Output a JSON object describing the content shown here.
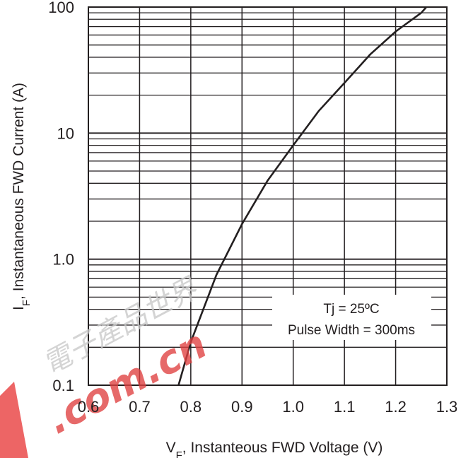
{
  "chart_data": {
    "type": "line",
    "x_scale": "linear",
    "y_scale": "log",
    "xlim": [
      0.6,
      1.3
    ],
    "ylim": [
      0.1,
      100
    ],
    "x_ticks": [
      "0.6",
      "0.7",
      "0.8",
      "0.9",
      "1.0",
      "1.1",
      "1.2",
      "1.3"
    ],
    "y_ticks": [
      {
        "value": 0.1,
        "label": "0.1"
      },
      {
        "value": 1,
        "label": "1.0"
      },
      {
        "value": 10,
        "label": "10"
      },
      {
        "value": 100,
        "label": "100"
      }
    ],
    "xlabel": {
      "main": "V",
      "sub": "F",
      "rest": ", Instanteous FWD Voltage (V)"
    },
    "ylabel": {
      "main": "I",
      "sub": "F",
      "rest": ", Instantaneous FWD Current (A)"
    },
    "grid": true,
    "annotations": [
      "Tj = 25ºC",
      "Pulse Width = 300ms"
    ],
    "watermark": [
      "電子產品世界",
      ".com.cn"
    ],
    "series": [
      {
        "x": [
          0.776,
          0.8,
          0.85,
          0.9,
          0.95,
          1.0,
          1.05,
          1.1,
          1.15,
          1.2,
          1.25,
          1.26
        ],
        "y": [
          0.1,
          0.22,
          0.75,
          1.9,
          4.2,
          8.0,
          15,
          25,
          42,
          64,
          90,
          100
        ]
      }
    ],
    "style": {
      "line_color": "#231f20",
      "grid_color": "#231f20",
      "watermark_color": "#e04040"
    }
  }
}
